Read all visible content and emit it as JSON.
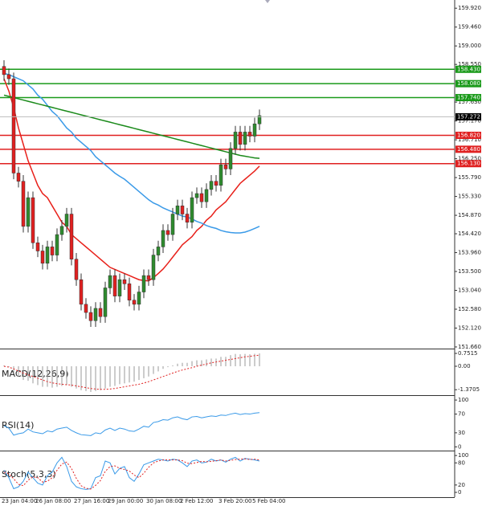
{
  "chart_data": [
    {
      "type": "candlestick",
      "categories": [
        "23 Jan 04:00",
        null,
        null,
        null,
        null,
        null,
        null,
        "26 Jan 08:00",
        null,
        null,
        null,
        null,
        null,
        null,
        null,
        "27 Jan 16:00",
        null,
        null,
        null,
        null,
        null,
        null,
        "29 Jan 00:00",
        null,
        null,
        null,
        null,
        null,
        null,
        null,
        "30 Jan 08:00",
        null,
        null,
        null,
        null,
        null,
        null,
        "2 Feb 12:00",
        null,
        null,
        null,
        null,
        null,
        null,
        null,
        "3 Feb 20:00",
        null,
        null,
        null,
        null,
        null,
        null,
        "5 Feb 04:00",
        null
      ],
      "open": [
        158.5,
        158.3,
        158.2,
        155.9,
        155.7,
        154.6,
        155.3,
        154.2,
        154.0,
        153.7,
        154.1,
        153.9,
        154.4,
        154.6,
        154.9,
        153.8,
        153.3,
        152.7,
        152.5,
        152.3,
        152.6,
        152.4,
        153.1,
        153.4,
        152.9,
        153.3,
        153.2,
        152.8,
        152.7,
        153.0,
        153.4,
        153.3,
        153.9,
        154.1,
        154.5,
        154.4,
        154.9,
        155.1,
        154.9,
        154.7,
        155.3,
        155.4,
        155.2,
        155.5,
        155.7,
        155.6,
        156.1,
        156.0,
        156.5,
        156.9,
        156.6,
        156.9,
        156.8,
        157.1
      ],
      "high": [
        158.65,
        158.45,
        158.35,
        156.05,
        155.85,
        155.45,
        155.45,
        154.35,
        154.15,
        154.25,
        154.25,
        154.55,
        154.75,
        155.05,
        155.05,
        153.95,
        153.45,
        152.85,
        152.65,
        152.75,
        152.75,
        153.25,
        153.55,
        153.55,
        153.45,
        153.45,
        153.35,
        152.95,
        153.15,
        153.55,
        153.55,
        154.05,
        154.25,
        154.65,
        154.65,
        155.05,
        155.25,
        155.25,
        155.05,
        155.45,
        155.55,
        155.55,
        155.65,
        155.85,
        155.85,
        156.25,
        156.25,
        156.65,
        157.05,
        157.05,
        157.05,
        157.05,
        157.25,
        157.45
      ],
      "low": [
        158.15,
        158.05,
        155.75,
        155.55,
        154.45,
        154.45,
        154.05,
        153.85,
        153.55,
        153.55,
        153.75,
        153.75,
        154.25,
        154.45,
        153.65,
        153.15,
        152.55,
        152.35,
        152.15,
        152.15,
        152.25,
        152.25,
        152.95,
        152.75,
        152.75,
        153.05,
        152.65,
        152.55,
        152.55,
        152.85,
        153.15,
        153.15,
        153.75,
        153.95,
        154.25,
        154.25,
        154.75,
        154.75,
        154.55,
        154.55,
        155.15,
        155.05,
        155.05,
        155.35,
        155.45,
        155.45,
        155.85,
        155.85,
        156.35,
        156.45,
        156.45,
        156.65,
        156.65,
        156.95
      ],
      "close": [
        158.3,
        158.2,
        155.9,
        155.7,
        154.6,
        155.3,
        154.2,
        154.0,
        153.7,
        154.1,
        153.9,
        154.4,
        154.6,
        154.9,
        153.8,
        153.3,
        152.7,
        152.5,
        152.3,
        152.6,
        152.4,
        153.1,
        153.4,
        152.9,
        153.3,
        153.2,
        152.8,
        152.7,
        153.0,
        153.4,
        153.3,
        153.9,
        154.1,
        154.5,
        154.4,
        154.9,
        155.1,
        154.9,
        154.7,
        155.3,
        155.4,
        155.2,
        155.5,
        155.7,
        155.6,
        156.1,
        156.0,
        156.5,
        156.9,
        156.6,
        156.9,
        156.8,
        157.1,
        157.3
      ],
      "up_color": "#2e8b2e",
      "down_color": "#e02020",
      "lines": [
        {
          "color": "#e8201a",
          "values": [
            158.2,
            157.9,
            157.5,
            157.0,
            156.6,
            156.2,
            155.9,
            155.6,
            155.4,
            155.3,
            155.1,
            154.9,
            154.7,
            154.6,
            154.4,
            154.3,
            154.2,
            154.1,
            154.0,
            153.9,
            153.8,
            153.7,
            153.6,
            153.55,
            153.5,
            153.45,
            153.4,
            153.35,
            153.3,
            153.28,
            153.27,
            153.35,
            153.45,
            153.56,
            153.7,
            153.85,
            154.0,
            154.15,
            154.25,
            154.35,
            154.5,
            154.6,
            154.75,
            154.85,
            155.0,
            155.1,
            155.2,
            155.35,
            155.5,
            155.65,
            155.75,
            155.85,
            155.95,
            156.07
          ]
        },
        {
          "color": "#3a9ae8",
          "values": [
            158.33,
            158.3,
            158.25,
            158.2,
            158.15,
            158.05,
            157.95,
            157.8,
            157.7,
            157.55,
            157.4,
            157.3,
            157.15,
            157.0,
            156.9,
            156.75,
            156.65,
            156.55,
            156.45,
            156.3,
            156.2,
            156.1,
            156.0,
            155.9,
            155.82,
            155.75,
            155.65,
            155.55,
            155.45,
            155.35,
            155.25,
            155.17,
            155.12,
            155.05,
            155.0,
            154.95,
            154.9,
            154.85,
            154.83,
            154.78,
            154.72,
            154.68,
            154.62,
            154.58,
            154.55,
            154.5,
            154.47,
            154.45,
            154.44,
            154.44,
            154.46,
            154.5,
            154.55,
            154.6
          ]
        },
        {
          "color": "#1a8a1a",
          "values": [
            157.8,
            157.77,
            157.74,
            157.71,
            157.68,
            157.65,
            157.62,
            157.59,
            157.56,
            157.53,
            157.5,
            157.47,
            157.44,
            157.41,
            157.38,
            157.35,
            157.32,
            157.29,
            157.26,
            157.23,
            157.2,
            157.17,
            157.14,
            157.11,
            157.08,
            157.05,
            157.02,
            156.99,
            156.96,
            156.93,
            156.9,
            156.87,
            156.84,
            156.81,
            156.78,
            156.75,
            156.72,
            156.69,
            156.66,
            156.63,
            156.6,
            156.57,
            156.54,
            156.51,
            156.48,
            156.45,
            156.42,
            156.39,
            156.36,
            156.33,
            156.31,
            156.29,
            156.27,
            156.26
          ]
        }
      ],
      "levels": [
        {
          "value": 158.43,
          "label": "158.430",
          "color": "#1a9a1a"
        },
        {
          "value": 158.08,
          "label": "158.080",
          "color": "#1a9a1a"
        },
        {
          "value": 157.74,
          "label": "157.740",
          "color": "#1a9a1a"
        },
        {
          "value": 156.82,
          "label": "156.820",
          "color": "#e02020"
        },
        {
          "value": 156.48,
          "label": "156.480",
          "color": "#e02020"
        },
        {
          "value": 156.13,
          "label": "156.130",
          "color": "#e02020"
        }
      ],
      "last_price": {
        "value": 157.272,
        "label": "157.272"
      },
      "ylim": [
        151.62,
        160.12
      ],
      "yticks": [
        {
          "value": 159.92,
          "label": "159.920"
        },
        {
          "value": 159.46,
          "label": "159.460"
        },
        {
          "value": 159,
          "label": "159.000"
        },
        {
          "value": 158.55,
          "label": "158.550"
        },
        {
          "value": 157.63,
          "label": "157.630"
        },
        {
          "value": 157.17,
          "label": "157.170"
        },
        {
          "value": 156.71,
          "label": "156.710"
        },
        {
          "value": 156.25,
          "label": "156.250"
        },
        {
          "value": 155.79,
          "label": "155.790"
        },
        {
          "value": 155.33,
          "label": "155.330"
        },
        {
          "value": 154.87,
          "label": "154.870"
        },
        {
          "value": 154.42,
          "label": "154.420"
        },
        {
          "value": 153.96,
          "label": "153.960"
        },
        {
          "value": 153.5,
          "label": "153.500"
        },
        {
          "value": 153.04,
          "label": "153.040"
        },
        {
          "value": 152.58,
          "label": "152.580"
        },
        {
          "value": 152.12,
          "label": "152.120"
        },
        {
          "value": 151.66,
          "label": "151.660"
        }
      ]
    },
    {
      "type": "macd",
      "title": "MACD(12,26,9)",
      "color": "#9a9a9a",
      "values": [
        0.05,
        -0.05,
        -0.4,
        -0.6,
        -0.8,
        -0.85,
        -1.0,
        -1.1,
        -1.2,
        -1.2,
        -1.25,
        -1.2,
        -1.15,
        -1.1,
        -1.2,
        -1.3,
        -1.4,
        -1.45,
        -1.5,
        -1.45,
        -1.4,
        -1.3,
        -1.2,
        -1.15,
        -1.05,
        -1.0,
        -0.95,
        -0.9,
        -0.8,
        -0.7,
        -0.6,
        -0.45,
        -0.3,
        -0.15,
        -0.05,
        0.05,
        0.15,
        0.2,
        0.2,
        0.3,
        0.35,
        0.35,
        0.4,
        0.45,
        0.45,
        0.55,
        0.55,
        0.65,
        0.72,
        0.7,
        0.72,
        0.7,
        0.73,
        0.75
      ],
      "signal": {
        "color": "#e02020",
        "values": [
          0.0,
          -0.05,
          -0.15,
          -0.28,
          -0.4,
          -0.5,
          -0.6,
          -0.7,
          -0.8,
          -0.9,
          -0.97,
          -1.02,
          -1.05,
          -1.08,
          -1.1,
          -1.15,
          -1.2,
          -1.25,
          -1.3,
          -1.33,
          -1.35,
          -1.35,
          -1.33,
          -1.3,
          -1.25,
          -1.2,
          -1.15,
          -1.1,
          -1.05,
          -0.98,
          -0.9,
          -0.8,
          -0.7,
          -0.6,
          -0.5,
          -0.4,
          -0.3,
          -0.22,
          -0.15,
          -0.08,
          0.0,
          0.07,
          0.13,
          0.2,
          0.25,
          0.3,
          0.35,
          0.4,
          0.45,
          0.5,
          0.55,
          0.58,
          0.62,
          0.65
        ]
      },
      "ylim": [
        -1.69,
        0.94
      ],
      "yticks": [
        0.7515,
        {
          "value": 0,
          "label": "0.00"
        },
        -1.3705
      ]
    },
    {
      "type": "line",
      "title": "RSI(14)",
      "series": [
        {
          "color": "#3a9ae8",
          "dashed": false,
          "values": [
            45,
            40,
            25,
            28,
            30,
            38,
            32,
            30,
            28,
            34,
            32,
            38,
            40,
            42,
            35,
            30,
            26,
            25,
            24,
            30,
            28,
            36,
            40,
            35,
            40,
            38,
            34,
            33,
            38,
            44,
            42,
            52,
            54,
            58,
            57,
            62,
            64,
            60,
            58,
            64,
            65,
            62,
            64,
            66,
            65,
            68,
            67,
            70,
            72,
            69,
            71,
            70,
            72,
            73
          ]
        }
      ],
      "ylim": [
        -8,
        107
      ],
      "yticks": [
        100,
        70,
        30,
        0
      ]
    },
    {
      "type": "line",
      "title": "Stoch(5,3,3)",
      "series": [
        {
          "color": "#3a9ae8",
          "dashed": false,
          "values": [
            60,
            40,
            10,
            15,
            30,
            55,
            40,
            25,
            20,
            45,
            55,
            80,
            95,
            70,
            30,
            15,
            10,
            8,
            10,
            40,
            45,
            85,
            80,
            50,
            65,
            70,
            40,
            30,
            50,
            75,
            80,
            85,
            90,
            88,
            85,
            90,
            88,
            80,
            70,
            85,
            88,
            80,
            82,
            90,
            85,
            88,
            82,
            90,
            95,
            85,
            92,
            90,
            88,
            85
          ]
        },
        {
          "color": "#e02020",
          "dashed": true,
          "values": [
            55,
            50,
            37,
            22,
            18,
            33,
            42,
            40,
            28,
            30,
            40,
            60,
            77,
            82,
            65,
            38,
            18,
            11,
            9,
            19,
            32,
            57,
            70,
            72,
            65,
            62,
            58,
            47,
            40,
            52,
            68,
            80,
            85,
            88,
            88,
            88,
            88,
            86,
            79,
            78,
            81,
            84,
            83,
            84,
            86,
            88,
            85,
            87,
            89,
            90,
            91,
            89,
            90,
            88
          ]
        }
      ],
      "ylim": [
        -13,
        109
      ],
      "yticks": [
        100,
        80,
        20,
        0
      ]
    }
  ]
}
